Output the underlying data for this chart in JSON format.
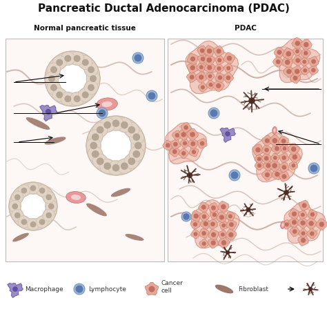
{
  "title": "Pancreatic Ductal Adenocarcinoma (PDAC)",
  "left_panel_title": "Normal pancreatic tissue",
  "right_panel_title": "PDAC",
  "bg_color": "#ffffff",
  "panel_bg": "#fdf8f5",
  "panel_border": "#bbbbbb",
  "duct_cell_fill": "#e2d5c8",
  "duct_cell_edge": "#c8b8a5",
  "duct_nucleus_color": "#b5a595",
  "duct_lumen_color": "#f5ede6",
  "cancer_blob_fill": "#e8a898",
  "cancer_blob_edge": "#c87868",
  "cancer_cell_fill": "#e8a898",
  "cancer_cell_edge": "#c07860",
  "cancer_nucleus_fill": "#c07060",
  "cancer_cell_inner": "#d08878",
  "macrophage_fill": "#9080c0",
  "macrophage_edge": "#7060a0",
  "macrophage_nucleus": "#6050a0",
  "lymphocyte_fill": "#a0b8d8",
  "lymphocyte_edge": "#7090b8",
  "lymphocyte_nucleus": "#5878b0",
  "rbc_fill": "#e89898",
  "rbc_edge": "#c07070",
  "rbc_center": "#f5d0d0",
  "fiber_color": "#a07060",
  "spindle_color": "#8B6050",
  "stellate_color": "#4a2820",
  "arrow_color": "#222222",
  "legend_text_color": "#333333",
  "title_fontsize": 11,
  "panel_title_fontsize": 7.5,
  "legend_fontsize": 6.5
}
